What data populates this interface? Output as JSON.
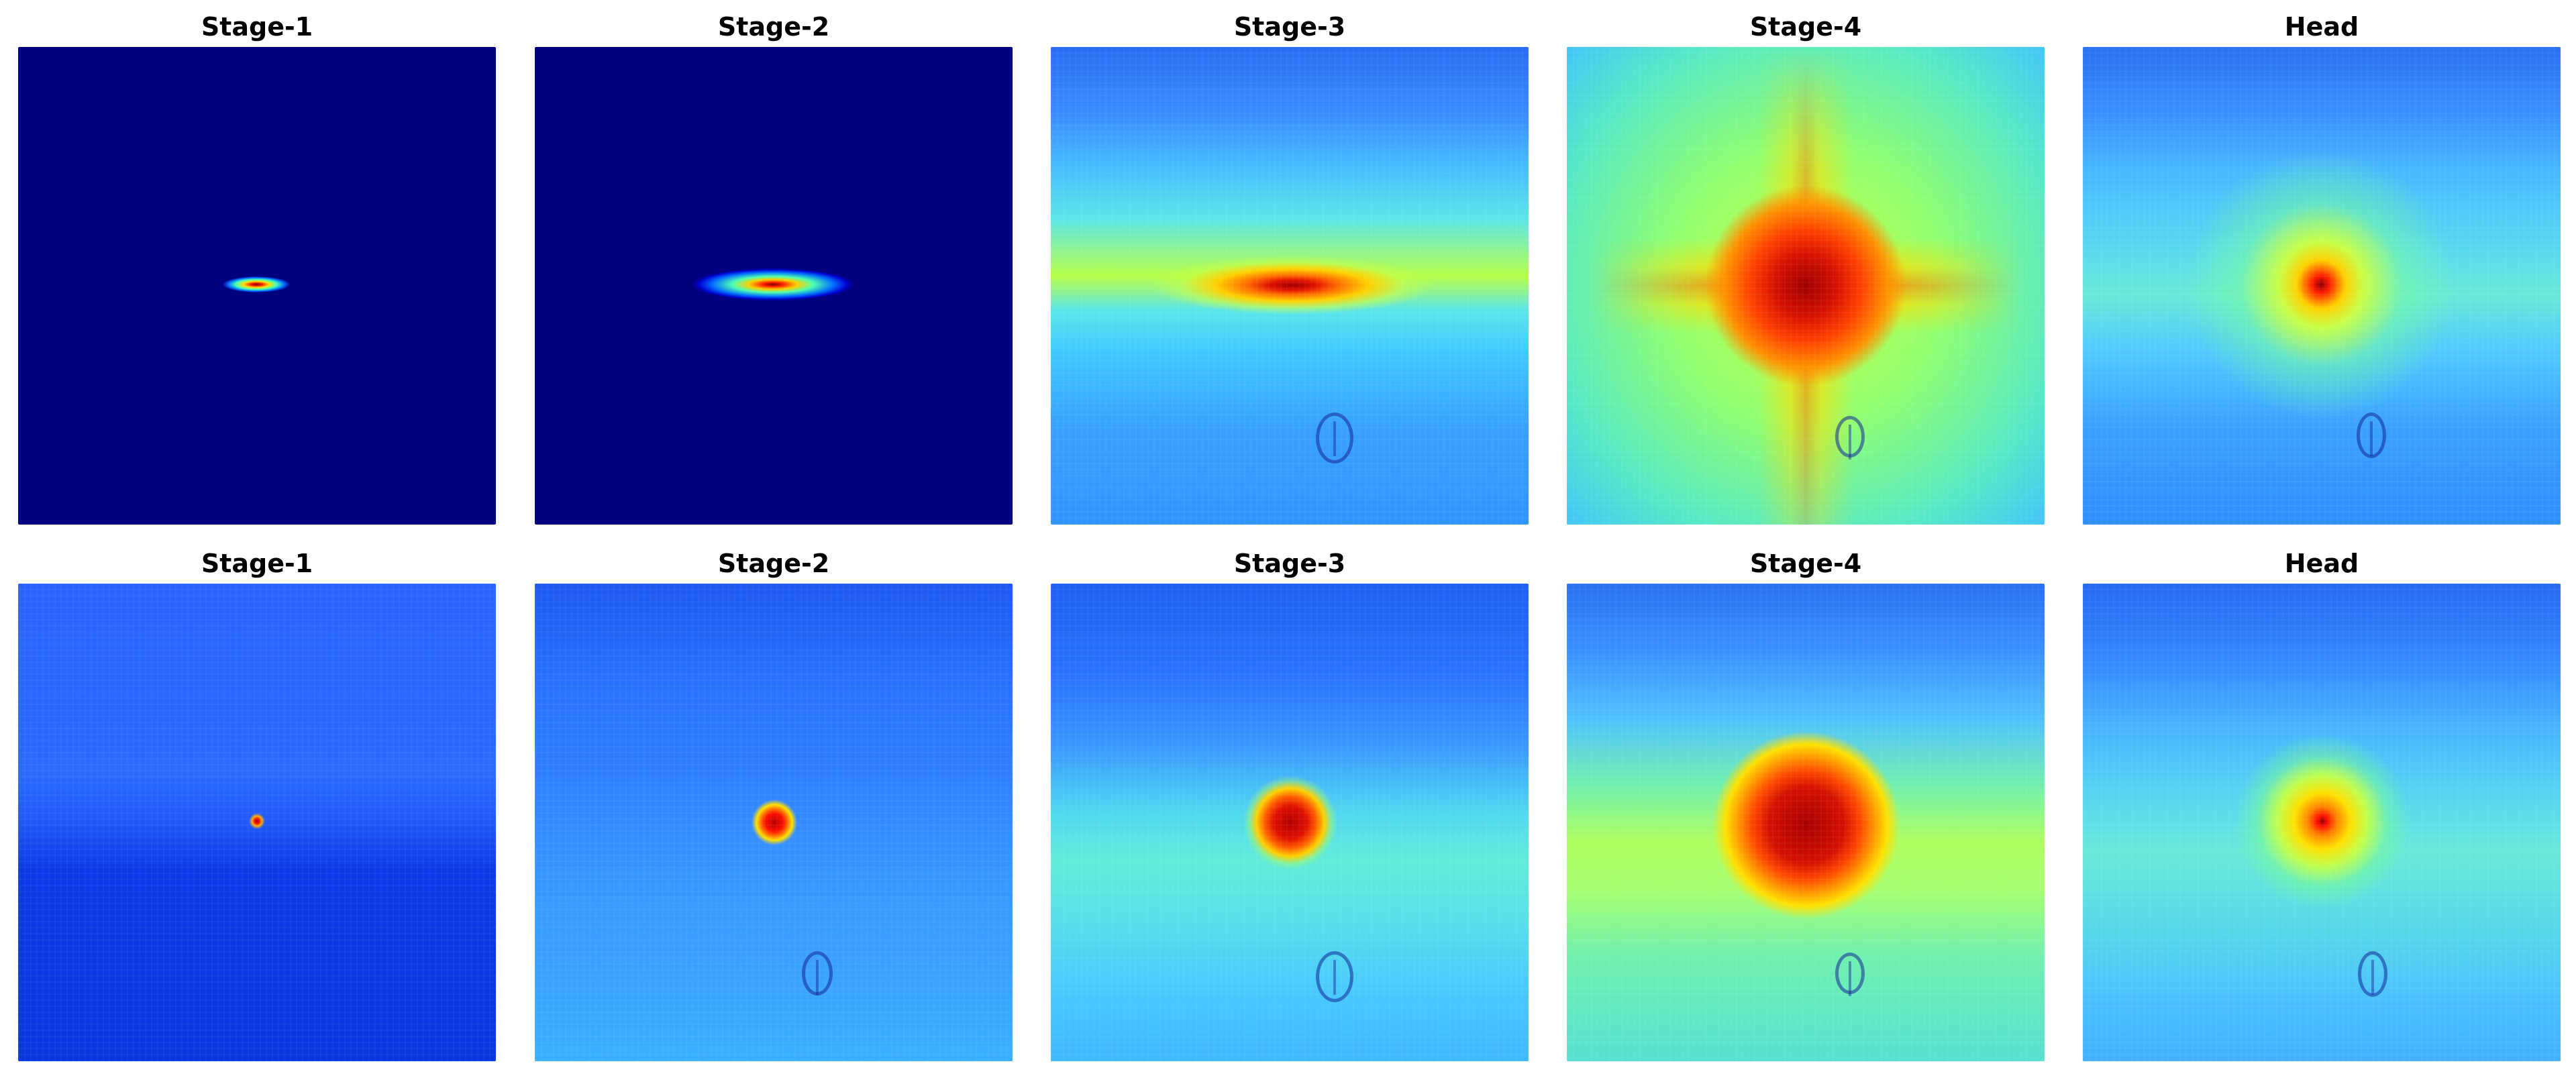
{
  "rows": [
    {
      "panels": [
        {
          "title": "Stage-1"
        },
        {
          "title": "Stage-2"
        },
        {
          "title": "Stage-3"
        },
        {
          "title": "Stage-4"
        },
        {
          "title": "Head"
        }
      ]
    },
    {
      "panels": [
        {
          "title": "Stage-1"
        },
        {
          "title": "Stage-2"
        },
        {
          "title": "Stage-3"
        },
        {
          "title": "Stage-4"
        },
        {
          "title": "Head"
        }
      ]
    }
  ],
  "colormap": "jet"
}
